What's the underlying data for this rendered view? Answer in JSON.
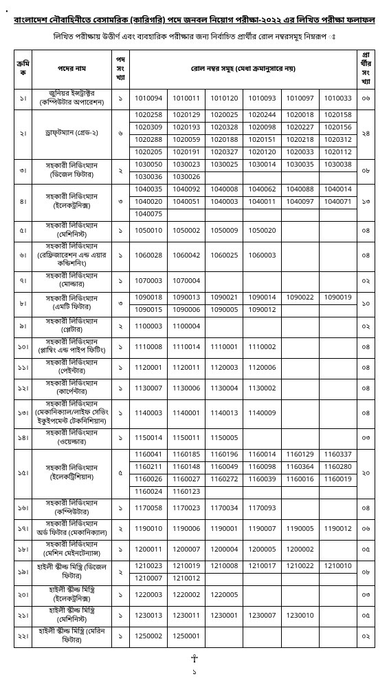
{
  "title": "বাংলাদেশ নৌবাহিনীতে বেসামরিক (কারিগরি) পদে জনবল নিয়োগ পরীক্ষা-২০২২ এর লিখিত পরীক্ষা ফলাফল",
  "subtitle": "লিখিত পরীক্ষায় উত্তীর্ণ এবং ব্যবহারিক পরীক্ষার জন্য নির্বাচিত প্রার্থীর রোল নম্বরসমূহ নিম্নরূপ ঃ",
  "headers": {
    "sl": "ক্রমিক",
    "post": "পদের নাম",
    "vac": "পদ সংখ্যা",
    "rolls": "রোল নম্বর সমূহ (মেধা ক্রমানুসারে নয়)",
    "cand": "প্রার্থীর সংখ্যা"
  },
  "rows": [
    {
      "sl": "১।",
      "post": "জুনিয়র ইন্সট্রাক্টর\n(কম্পিউটার অপারেশন)",
      "vac": "১",
      "cand": "০৬",
      "rollRows": [
        [
          "1010094",
          "1010011",
          "1010120",
          "1010093",
          "1010097",
          "1010033"
        ]
      ]
    },
    {
      "sl": "২।",
      "post": "ড্রাফ্‌টম্যান (গ্রেড-২)",
      "vac": "৬",
      "cand": "২৪",
      "rollRows": [
        [
          "1020258",
          "1020129",
          "1020025",
          "1020244",
          "1020018",
          "1020158"
        ],
        [
          "1020309",
          "1020193",
          "1020328",
          "1020098",
          "1020227",
          "1020156"
        ],
        [
          "1020288",
          "1020059",
          "1020188",
          "1020151",
          "1020218",
          "1020312"
        ],
        [
          "1020205",
          "1020191",
          "1020327",
          "1020120",
          "1020033",
          "1020112"
        ]
      ]
    },
    {
      "sl": "৩।",
      "post": "সহকারী লিডিংম্যান\n(ডিজেল ফিটার)",
      "vac": "২",
      "cand": "০৮",
      "rollRows": [
        [
          "1030050",
          "1030023",
          "1030025",
          "1030014",
          "1030035",
          "1030038"
        ],
        [
          "1030036",
          "1030026",
          "",
          "",
          "",
          ""
        ]
      ]
    },
    {
      "sl": "৪।",
      "post": "সহকারী লিডিংম্যান\n(ইলেকট্রনিক্স)",
      "vac": "৩",
      "cand": "১৩",
      "rollRows": [
        [
          "1040035",
          "1040092",
          "1040008",
          "1040062",
          "1040088",
          "1040014"
        ],
        [
          "1040020",
          "1040051",
          "1040003",
          "1040011",
          "1040097",
          "1040071"
        ],
        [
          "1040075",
          "",
          "",
          "",
          "",
          ""
        ]
      ]
    },
    {
      "sl": "৫।",
      "post": "সহকারী লিডিংম্যান\n(মেশিনিস্ট)",
      "vac": "১",
      "cand": "০৪",
      "rollRows": [
        [
          "1050010",
          "1050002",
          "1050009",
          "1050020",
          "",
          ""
        ]
      ]
    },
    {
      "sl": "৬।",
      "post": "সহকারী লিডিংম্যান\n(রেফ্রিজারেশন এন্ড এয়ার কন্ডিশনিং)",
      "vac": "১",
      "cand": "০৪",
      "rollRows": [
        [
          "1060028",
          "1060042",
          "1060025",
          "1060003",
          "",
          ""
        ]
      ]
    },
    {
      "sl": "৭।",
      "post": "সহকারী লিডিংম্যান\n(মোল্ডার)",
      "vac": "১",
      "cand": "০২",
      "rollRows": [
        [
          "1070003",
          "1070004",
          "",
          "",
          "",
          ""
        ]
      ]
    },
    {
      "sl": "৮।",
      "post": "সহকারী লিডিংম্যান\n(এমটি ফিটার)",
      "vac": "৩",
      "cand": "১০",
      "rollRows": [
        [
          "1090018",
          "1090013",
          "1090021",
          "1090014",
          "1090022",
          "1090019"
        ],
        [
          "1090015",
          "1090006",
          "1090005",
          "1090012",
          "",
          ""
        ]
      ]
    },
    {
      "sl": "৯।",
      "post": "সহকারী লিডিংম্যান\n(প্লেটার)",
      "vac": "২",
      "cand": "০২",
      "rollRows": [
        [
          "1100003",
          "1100004",
          "",
          "",
          "",
          ""
        ]
      ]
    },
    {
      "sl": "১০।",
      "post": "সহকারী লিডিংম্যান\n(প্লাম্বিং এন্ড পাইপ ফিটিং)",
      "vac": "১",
      "cand": "০৪",
      "rollRows": [
        [
          "1110008",
          "1110014",
          "1110001",
          "1110002",
          "",
          ""
        ]
      ]
    },
    {
      "sl": "১১।",
      "post": "সহকারী লিডিংম্যান\n(পেইন্টার)",
      "vac": "১",
      "cand": "০৪",
      "rollRows": [
        [
          "1120001",
          "1120011",
          "1120003",
          "1120006",
          "",
          ""
        ]
      ]
    },
    {
      "sl": "১২।",
      "post": "সহকারী লিডিংম্যান\n(কার্পেন্টার)",
      "vac": "১",
      "cand": "০৪",
      "rollRows": [
        [
          "1130007",
          "1130006",
          "1130004",
          "1130002",
          "",
          ""
        ]
      ]
    },
    {
      "sl": "১৩।",
      "post": "সহকারী লিডিংম্যান\n(মেকানিক্যাল/লাইফ সেভিং\nইকুইপমেন্ট টেকনিশিয়ান)",
      "vac": "১",
      "cand": "০৪",
      "rollRows": [
        [
          "1140003",
          "1140001",
          "1140013",
          "1140009",
          "",
          ""
        ]
      ]
    },
    {
      "sl": "১৪।",
      "post": "সহকারী লিডিংম্যান\n(ওয়েল্ডার)",
      "vac": "১",
      "cand": "০৩",
      "rollRows": [
        [
          "1150014",
          "1150011",
          "1150005",
          "",
          "",
          ""
        ]
      ]
    },
    {
      "sl": "১৫।",
      "post": "সহকারী লিডিংম্যান\n(ইলেকট্রিশিয়ান)",
      "vac": "৫",
      "cand": "২০",
      "rollRows": [
        [
          "1160041",
          "1160185",
          "1160196",
          "1160014",
          "1160129",
          "1160337"
        ],
        [
          "1160211",
          "1160148",
          "1160049",
          "1160098",
          "1160364",
          "1160280"
        ],
        [
          "1160026",
          "1160027",
          "1160272",
          "1160039",
          "1160016",
          "1160019"
        ],
        [
          "1160024",
          "1160123",
          "",
          "",
          "",
          ""
        ]
      ]
    },
    {
      "sl": "১৬।",
      "post": "সহকারী লিডিংম্যান\n(কম্পিউটার)",
      "vac": "১",
      "cand": "০৪",
      "rollRows": [
        [
          "1170058",
          "1170023",
          "1170034",
          "1170093",
          "",
          ""
        ]
      ]
    },
    {
      "sl": "১৭।",
      "post": "সহকারী লিডিংম্যান\nঅর্ড ফিটার (মেকানিক্যাল)",
      "vac": "২",
      "cand": "০৬",
      "rollRows": [
        [
          "1190010",
          "1190006",
          "1190001",
          "1190007",
          "1190005",
          "1190012"
        ]
      ]
    },
    {
      "sl": "১৮।",
      "post": "সহকারী লিডিংম্যান\n(মেশিন মেইনটেন্যান্স)",
      "vac": "১",
      "cand": "০৫",
      "rollRows": [
        [
          "1200011",
          "1200007",
          "1200004",
          "1200005",
          "1200002",
          ""
        ]
      ]
    },
    {
      "sl": "১৯।",
      "post": "হাইলী স্কীল্ড মিস্ত্রি (ডিজেল ফিটার)",
      "vac": "২",
      "cand": "০৮",
      "rollRows": [
        [
          "1210023",
          "1210019",
          "1210008",
          "1210017",
          "1210022",
          "1210010"
        ],
        [
          "1210007",
          "1210012",
          "",
          "",
          "",
          ""
        ]
      ]
    },
    {
      "sl": "২০।",
      "post": "হাইলী স্কীল্ড মিস্ত্রি (ইলেকট্রনিক্স)",
      "vac": "১",
      "cand": "০৩",
      "rollRows": [
        [
          "1220003",
          "1220002",
          "1220005",
          "",
          "",
          ""
        ]
      ]
    },
    {
      "sl": "২১।",
      "post": "হাইলী স্কীল্ড মিস্ত্রি (মেশিনিস্ট)",
      "vac": "১",
      "cand": "০৫",
      "rollRows": [
        [
          "1230013",
          "1230011",
          "1230001",
          "1230007",
          "1230010",
          ""
        ]
      ]
    },
    {
      "sl": "২২।",
      "post": "হাইলী স্কীল্ড মিস্ত্রি (মেরিন ফিটার)",
      "vac": "১",
      "cand": "০২",
      "rollRows": [
        [
          "1250002",
          "1250001",
          "",
          "",
          "",
          ""
        ]
      ]
    }
  ],
  "signature": "☥",
  "pageno": "১"
}
